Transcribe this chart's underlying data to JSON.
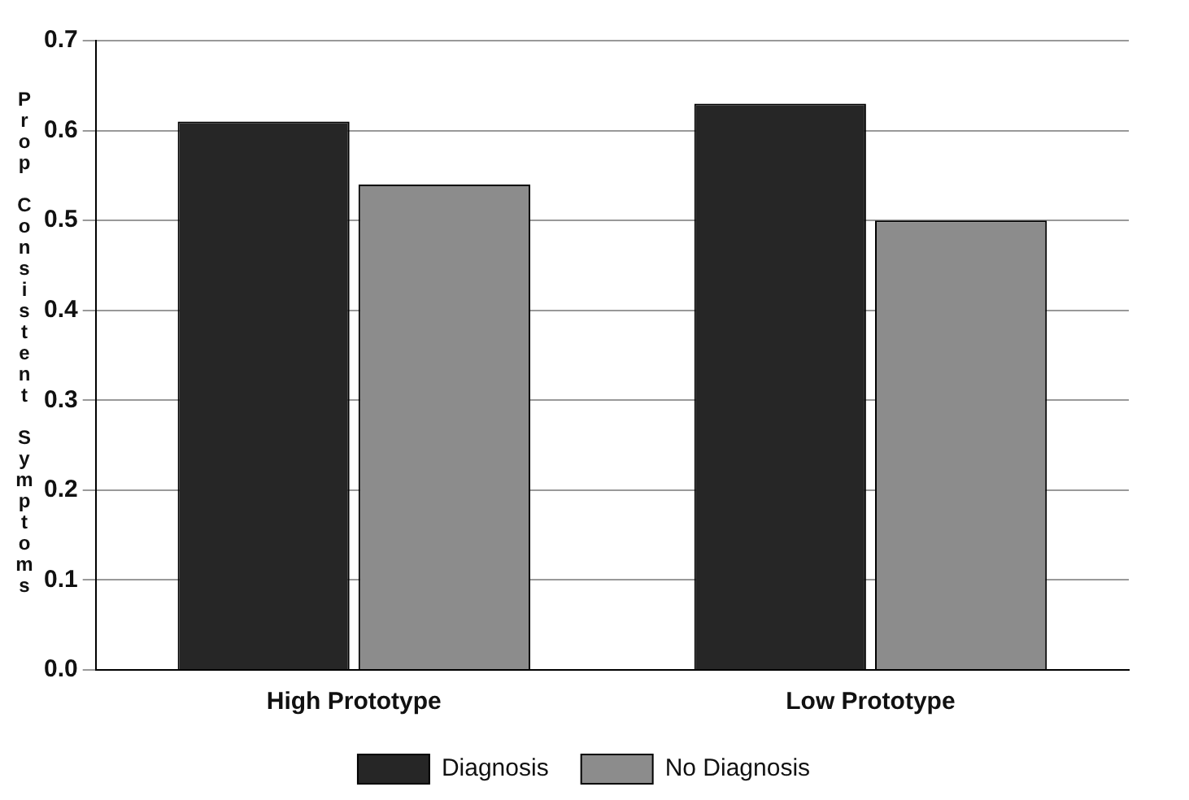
{
  "chart_data": {
    "type": "bar",
    "ylabel": "Prop Consistent Symptoms",
    "categories": [
      "High Prototype",
      "Low Prototype"
    ],
    "series": [
      {
        "name": "Diagnosis",
        "color": "#262626",
        "values": [
          0.61,
          0.63
        ]
      },
      {
        "name": "No Diagnosis",
        "color": "#8c8c8c",
        "values": [
          0.54,
          0.5
        ]
      }
    ],
    "ylim": [
      0,
      0.7
    ],
    "yticks": [
      {
        "value": 0,
        "label": "0.0"
      },
      0.1,
      0.2,
      0.3,
      0.4,
      0.5,
      0.6,
      0.7
    ],
    "grid": "y",
    "legend": "bottom"
  }
}
